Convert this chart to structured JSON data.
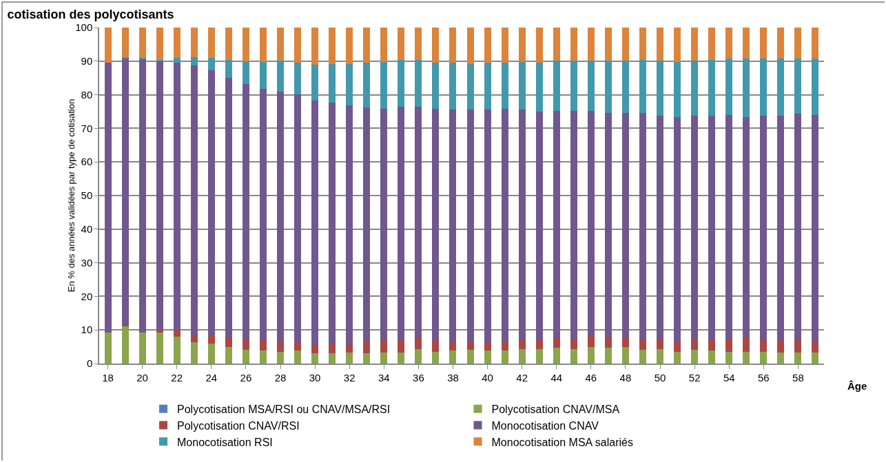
{
  "chart_data": {
    "type": "bar",
    "stacked": true,
    "title": "cotisation des polycotisants",
    "xlabel": "Âge",
    "ylabel": "En % des années validées par type de cotisation",
    "categories": [
      "18",
      null,
      "20",
      null,
      "22",
      null,
      "24",
      null,
      "26",
      null,
      "28",
      null,
      "30",
      null,
      "32",
      null,
      "34",
      null,
      "36",
      null,
      "38",
      null,
      "40",
      null,
      "42",
      null,
      "44",
      null,
      "46",
      null,
      "48",
      null,
      "50",
      null,
      "52",
      null,
      "54",
      null,
      "56",
      null,
      "58",
      null
    ],
    "series": [
      {
        "name": "Polycotisation MSA/RSI ou CNAV/MSA/RSI",
        "color": "#4f81bd",
        "values": [
          0,
          0,
          0,
          0,
          0,
          0,
          0,
          0,
          0,
          0,
          0,
          0,
          0,
          0,
          0,
          0,
          0,
          0,
          0,
          0,
          0,
          0,
          0,
          0,
          0,
          0,
          0,
          0,
          0,
          0,
          0,
          0,
          0,
          0,
          0,
          0,
          0,
          0,
          0,
          0,
          0,
          0
        ]
      },
      {
        "name": "Polycotisation CNAV/MSA",
        "color": "#8ba54c",
        "values": [
          9.2,
          11.2,
          9.2,
          9.2,
          8.0,
          6.4,
          5.9,
          5.0,
          4.1,
          3.8,
          3.5,
          3.8,
          3.0,
          3.0,
          3.3,
          3.0,
          3.3,
          3.3,
          4.4,
          3.5,
          3.8,
          4.1,
          3.8,
          3.8,
          4.4,
          4.4,
          4.7,
          4.4,
          5.0,
          4.7,
          5.0,
          4.1,
          4.4,
          3.5,
          4.1,
          3.8,
          3.5,
          3.5,
          3.5,
          3.3,
          3.3,
          3.3
        ]
      },
      {
        "name": "Polycotisation CNAV/RSI",
        "color": "#ab4744",
        "values": [
          null,
          0.2,
          null,
          0.8,
          1.8,
          2.1,
          2.6,
          2.8,
          3.3,
          3.4,
          3.1,
          2.6,
          2.5,
          3.0,
          2.5,
          3.6,
          3.6,
          3.6,
          3.4,
          3.4,
          2.8,
          2.5,
          2.6,
          2.8,
          2.8,
          2.6,
          3.1,
          3.0,
          3.3,
          3.3,
          2.8,
          3.1,
          3.0,
          3.1,
          3.3,
          3.4,
          3.7,
          4.3,
          3.4,
          3.6,
          3.9,
          3.1
        ]
      },
      {
        "name": "Monocotisation CNAV",
        "color": "#70588f",
        "values": [
          80.4,
          79.5,
          81.4,
          79.9,
          79.7,
          80.2,
          78.8,
          77.2,
          75.8,
          74.6,
          74.4,
          73.8,
          72.7,
          71.6,
          71.1,
          69.7,
          69.0,
          69.6,
          68.7,
          69.0,
          69.1,
          69.1,
          69.3,
          69.3,
          68.5,
          67.9,
          67.5,
          67.9,
          67.0,
          66.5,
          66.7,
          67.3,
          66.3,
          66.7,
          66.3,
          66.5,
          66.8,
          65.5,
          66.8,
          66.8,
          67.1,
          67.6
        ]
      },
      {
        "name": "Monocotisation RSI",
        "color": "#4299ae",
        "values": [
          null,
          0.3,
          0.3,
          0.5,
          1.5,
          2.5,
          3.6,
          5.4,
          6.8,
          7.9,
          9.1,
          9.3,
          10.8,
          11.6,
          12.3,
          13.2,
          13.8,
          13.8,
          13.8,
          13.6,
          13.8,
          13.5,
          13.8,
          13.6,
          14.0,
          14.6,
          14.8,
          14.8,
          14.8,
          15.6,
          15.6,
          15.9,
          16.4,
          16.4,
          16.4,
          16.7,
          16.7,
          17.4,
          17.0,
          17.0,
          16.4,
          16.7
        ]
      },
      {
        "name": "Monocotisation MSA salariés",
        "color": "#dc843c",
        "values": [
          10.4,
          8.8,
          9.0,
          9.6,
          9.0,
          8.8,
          9.1,
          9.6,
          10.0,
          10.3,
          9.9,
          10.5,
          11.0,
          10.8,
          10.8,
          10.5,
          10.3,
          9.7,
          9.7,
          10.5,
          10.5,
          10.8,
          10.5,
          10.5,
          10.3,
          10.5,
          9.9,
          9.9,
          9.9,
          9.9,
          9.9,
          9.6,
          9.9,
          10.3,
          9.9,
          9.6,
          9.3,
          9.3,
          9.3,
          9.3,
          9.3,
          9.3
        ]
      }
    ],
    "ylim": [
      0,
      100
    ],
    "yticks": [
      0,
      10,
      20,
      30,
      40,
      50,
      60,
      70,
      80,
      90,
      100
    ],
    "grid": "y",
    "legend": "bottom"
  }
}
